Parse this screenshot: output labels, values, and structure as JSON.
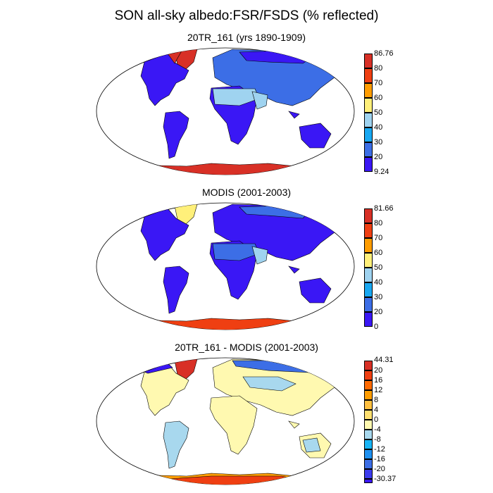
{
  "title": "SON all-sky albedo:FSR/FSDS (% reflected)",
  "panels": [
    {
      "id": "model",
      "title": "20TR_161 (yrs 1890-1909)",
      "colorbar": {
        "max_label": "86.76",
        "labels": [
          "80",
          "70",
          "60",
          "50",
          "40",
          "30",
          "20"
        ],
        "min_label": "9.24",
        "colors": [
          "#3a17f5",
          "#3c6ee6",
          "#9fd3f0",
          "#fff07a",
          "#f0c85a",
          "#ff9d00",
          "#ef3f12",
          "#d83026"
        ]
      }
    },
    {
      "id": "obs",
      "title": "MODIS (2001-2003)",
      "colorbar": {
        "max_label": "81.66",
        "labels": [
          "80",
          "70",
          "60",
          "50",
          "40",
          "30",
          "20"
        ],
        "min_label": "0",
        "colors": [
          "#3a17f5",
          "#3c6ee6",
          "#18a8f2",
          "#9fd3f0",
          "#fff07a",
          "#ff9d00",
          "#ef3f12",
          "#d83026"
        ]
      }
    },
    {
      "id": "diff",
      "title": "20TR_161 - MODIS (2001-2003)",
      "colorbar": {
        "max_label": "44.31",
        "labels": [
          "20",
          "16",
          "12",
          "8",
          "4",
          "0",
          "-4",
          "-8",
          "-12",
          "-16",
          "-20"
        ],
        "min_label": "-30.37",
        "colors": [
          "#3a17f5",
          "#3c3cee",
          "#3c6ee6",
          "#1e90f0",
          "#18b4f5",
          "#a8d8ee",
          "#fff9b0",
          "#ffe070",
          "#ffc040",
          "#ff9d00",
          "#ff6a00",
          "#ef3f12",
          "#d83026"
        ]
      }
    }
  ]
}
